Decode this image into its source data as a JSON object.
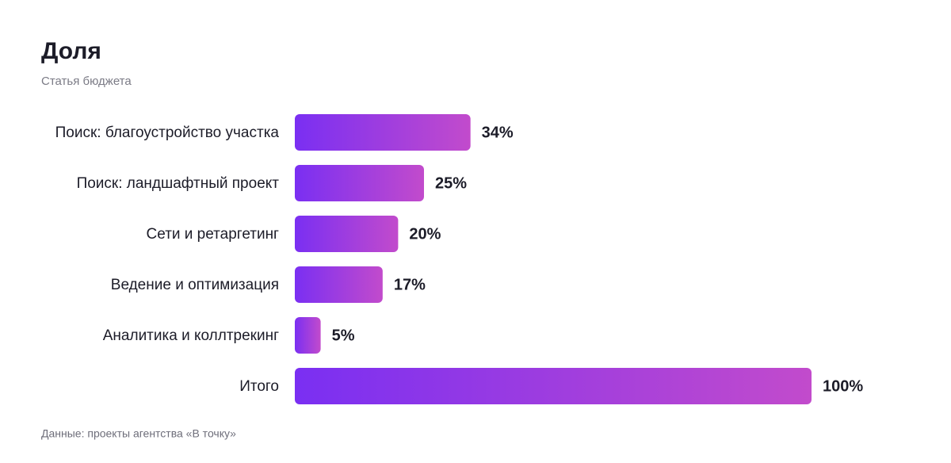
{
  "chart_data": {
    "type": "bar",
    "orientation": "horizontal",
    "title": "Доля",
    "subtitle": "Статья бюджета",
    "categories": [
      "Поиск: благоустройство участка",
      "Поиск: ландшафтный проект",
      "Сети и ретаргетинг",
      "Ведение и оптимизация",
      "Аналитика и коллтрекинг",
      "Итого"
    ],
    "values": [
      34,
      25,
      20,
      17,
      5,
      100
    ],
    "value_labels": [
      "34%",
      "25%",
      "20%",
      "17%",
      "5%",
      "100%"
    ],
    "gradient": [
      "#7a2ff2",
      "#c24bcc"
    ],
    "note": "Данные: проекты агентства «В точку»"
  }
}
